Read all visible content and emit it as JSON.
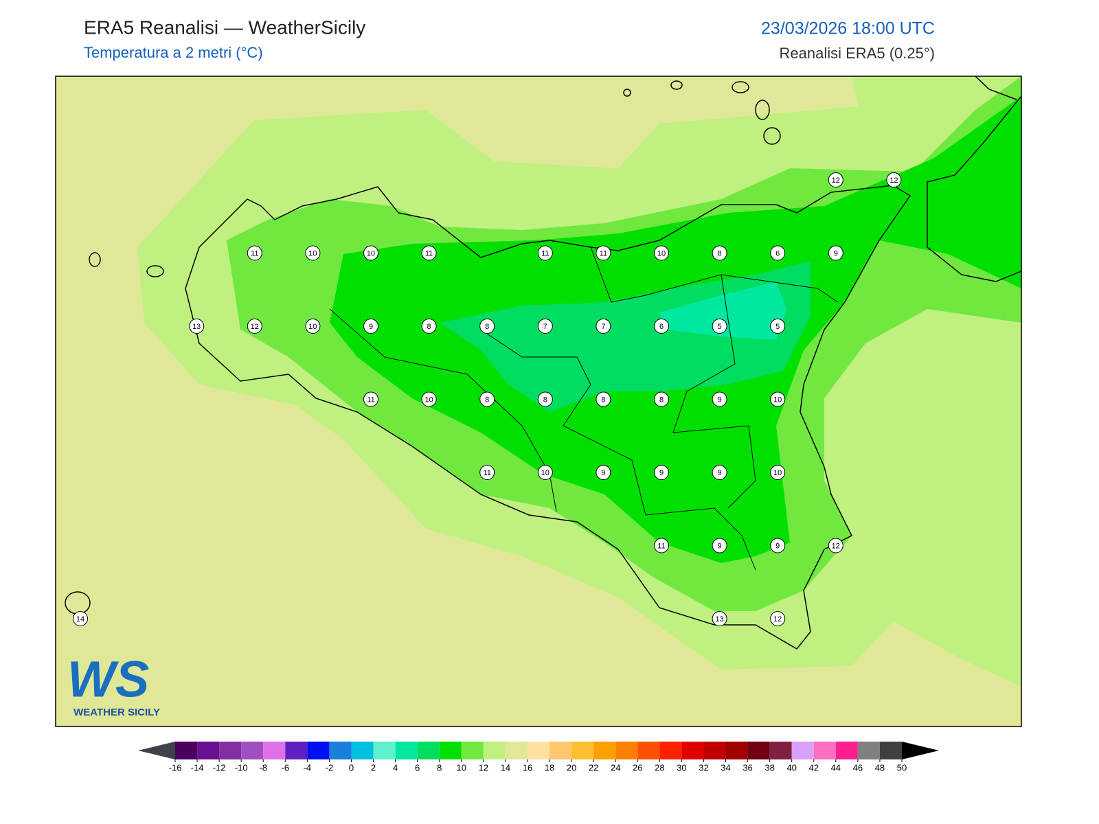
{
  "header": {
    "title": "ERA5 Reanalisi — WeatherSicily",
    "subtitle": "Temperatura a 2 metri (°C)",
    "datetime": "23/03/2026 18:00 UTC",
    "source": "Reanalisi ERA5 (0.25°)"
  },
  "stations": {
    "rows": [
      [
        null,
        null,
        null,
        null,
        null,
        null,
        null,
        null,
        null,
        null,
        null,
        null,
        null,
        12,
        12
      ],
      [
        null,
        null,
        null,
        11,
        10,
        10,
        11,
        null,
        11,
        11,
        10,
        8,
        6,
        9,
        null
      ],
      [
        null,
        null,
        13,
        12,
        10,
        9,
        8,
        8,
        7,
        7,
        6,
        5,
        5,
        null,
        null
      ],
      [
        null,
        null,
        null,
        null,
        null,
        11,
        10,
        8,
        8,
        8,
        8,
        9,
        10,
        null,
        null
      ],
      [
        null,
        null,
        null,
        null,
        null,
        null,
        null,
        11,
        10,
        9,
        9,
        9,
        10,
        null,
        null
      ],
      [
        null,
        null,
        null,
        null,
        null,
        null,
        null,
        null,
        null,
        null,
        11,
        9,
        9,
        12,
        null
      ],
      [
        14,
        null,
        null,
        null,
        null,
        null,
        null,
        null,
        null,
        null,
        null,
        13,
        12,
        null,
        null
      ]
    ]
  },
  "colorbar": {
    "ticks": [
      -16,
      -14,
      -12,
      -10,
      -8,
      -6,
      -4,
      -2,
      0,
      2,
      4,
      6,
      8,
      10,
      12,
      14,
      16,
      18,
      20,
      22,
      24,
      26,
      28,
      30,
      32,
      34,
      36,
      38,
      40,
      42,
      44,
      46,
      48,
      50
    ],
    "colors": [
      "#4b0060",
      "#6a1090",
      "#8030a0",
      "#a050c0",
      "#e070e8",
      "#6020c0",
      "#0010f0",
      "#1a7fdb",
      "#00c0e0",
      "#60f0d0",
      "#00e8a0",
      "#00dd60",
      "#00e000",
      "#70e840",
      "#c0f080",
      "#e0e898",
      "#ffe0a0",
      "#ffc870",
      "#ffc030",
      "#ffa000",
      "#ff8000",
      "#ff5000",
      "#ff2000",
      "#e00000",
      "#c00000",
      "#a00000",
      "#700010",
      "#802040",
      "#d8a0f8",
      "#ff70c0",
      "#ff2090",
      "#808080",
      "#404040"
    ],
    "under_color": "#404048",
    "over_color": "#000000"
  },
  "logo": {
    "letters": "WS",
    "caption": "WEATHER SICILY"
  }
}
